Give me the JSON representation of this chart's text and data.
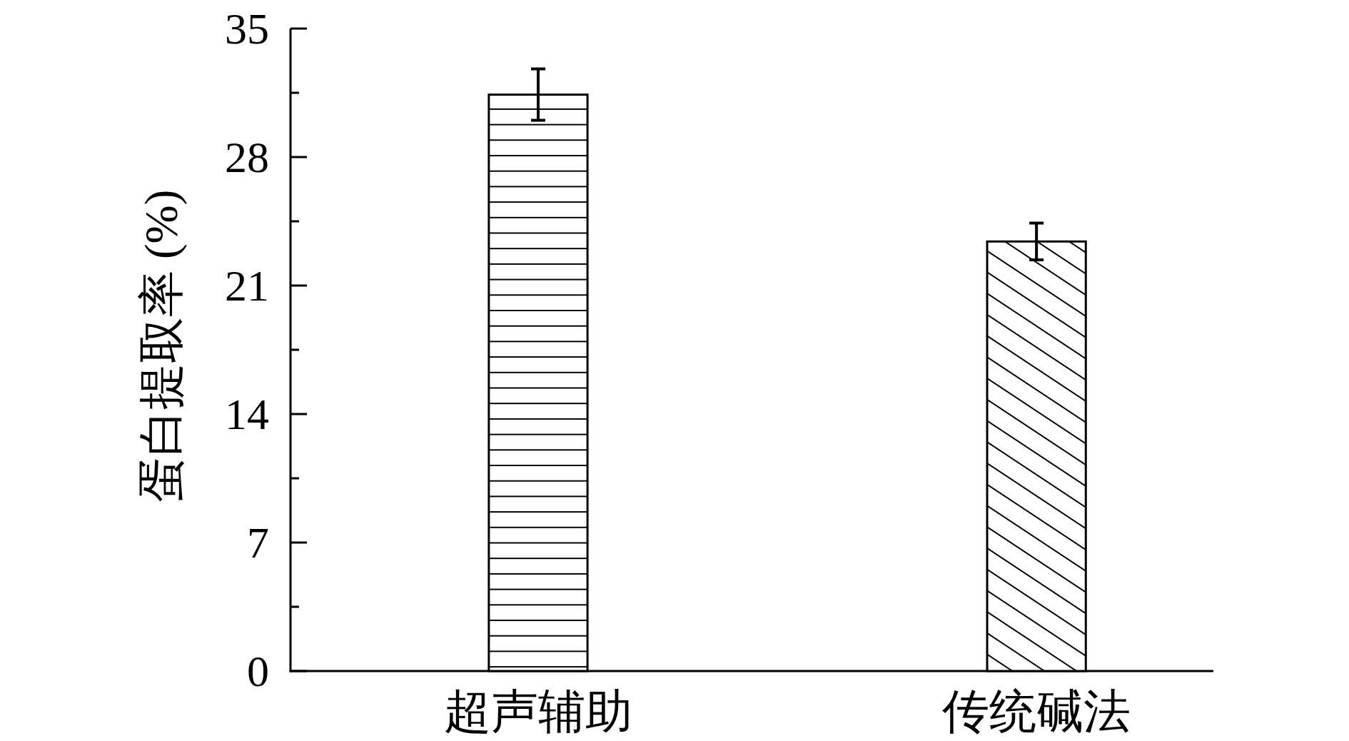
{
  "chart_data": {
    "type": "bar",
    "ylabel": "蛋白提取率 (%)",
    "categories": [
      "超声辅助",
      "传统碱法"
    ],
    "values": [
      31.4,
      23.4
    ],
    "errors": [
      1.4,
      1.0
    ],
    "colors": [
      "#000000",
      "#000000"
    ],
    "ylim": [
      0,
      35
    ],
    "yticks": [
      0,
      {
        "value": 3.5,
        "label": null
      },
      7,
      {
        "value": 10.5,
        "label": null
      },
      14,
      {
        "value": 17.5,
        "label": null
      },
      21,
      {
        "value": 24.5,
        "label": null
      },
      28,
      {
        "value": 31.5,
        "label": null
      },
      35
    ]
  }
}
